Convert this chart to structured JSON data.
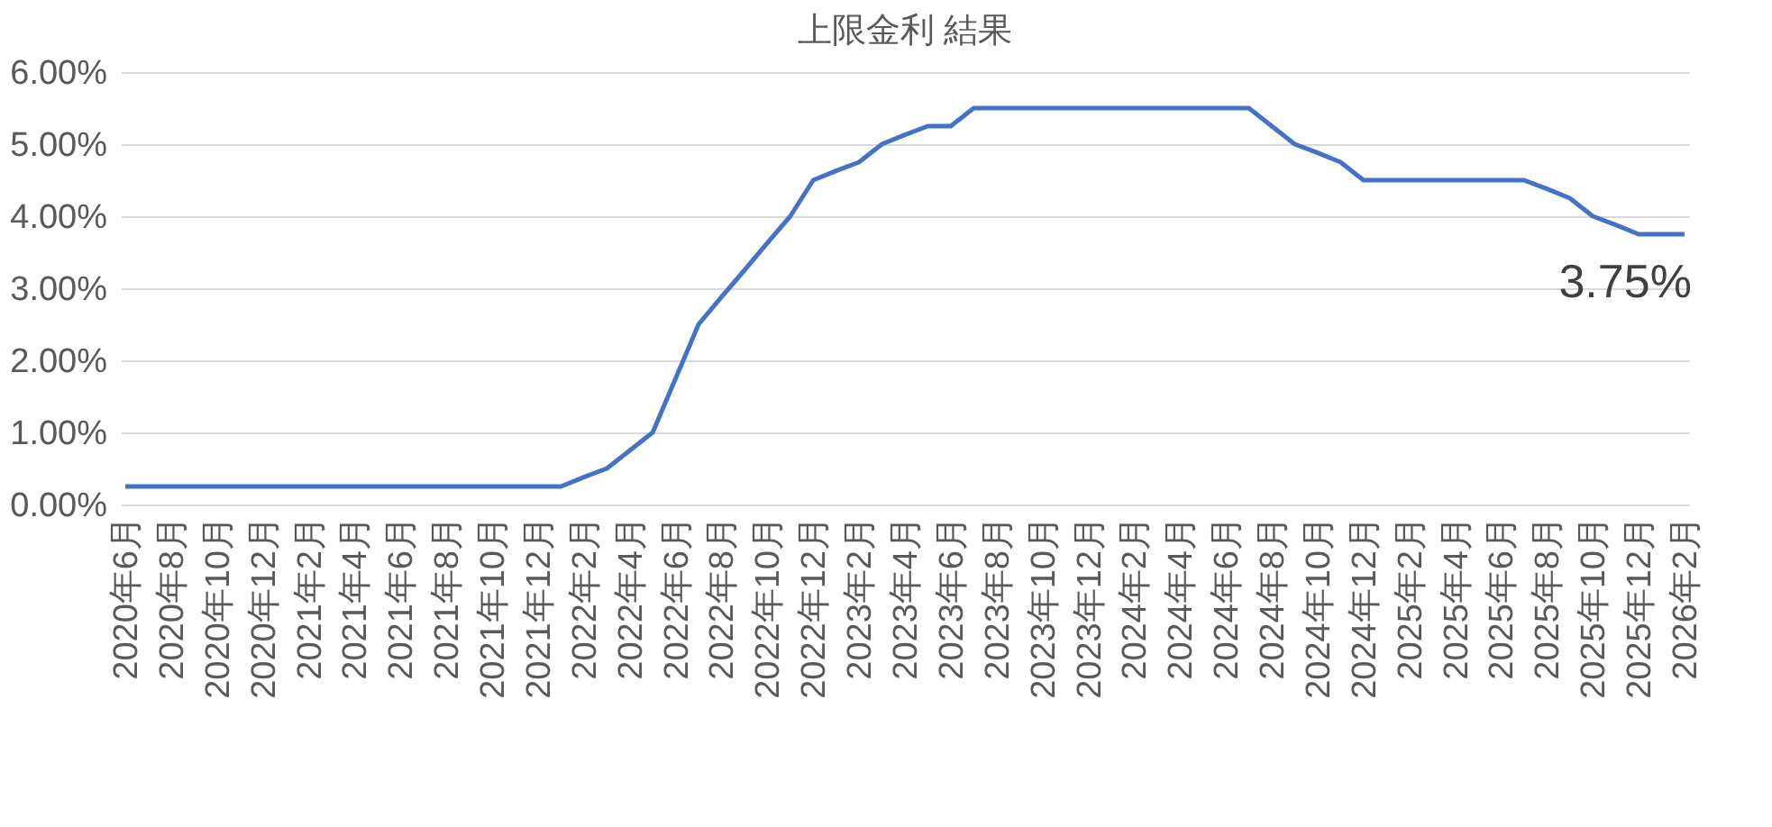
{
  "chart_data": {
    "type": "line",
    "title": "上限金利 結果",
    "categories": [
      "2020年6月",
      null,
      "2020年8月",
      null,
      "2020年10月",
      null,
      "2020年12月",
      null,
      "2021年2月",
      null,
      "2021年4月",
      null,
      "2021年6月",
      null,
      "2021年8月",
      null,
      "2021年10月",
      null,
      "2021年12月",
      null,
      "2022年2月",
      null,
      "2022年4月",
      null,
      "2022年6月",
      null,
      "2022年8月",
      null,
      "2022年10月",
      null,
      "2022年12月",
      null,
      "2023年2月",
      null,
      "2023年4月",
      null,
      "2023年6月",
      null,
      "2023年8月",
      null,
      "2023年10月",
      null,
      "2023年12月",
      null,
      "2024年2月",
      null,
      "2024年4月",
      null,
      "2024年6月",
      null,
      "2024年8月",
      null,
      "2024年10月",
      null,
      "2024年12月",
      null,
      "2025年2月",
      null,
      "2025年4月",
      null,
      "2025年6月",
      null,
      "2025年8月",
      null,
      "2025年10月",
      null,
      "2025年12月",
      null,
      "2026年2月"
    ],
    "series": [
      {
        "color": "#4472c4",
        "values": [
          0.25,
          0.25,
          0.25,
          0.25,
          0.25,
          0.25,
          0.25,
          0.25,
          0.25,
          0.25,
          0.25,
          0.25,
          0.25,
          0.25,
          0.25,
          0.25,
          0.25,
          0.25,
          0.25,
          0.25,
          0.38,
          0.5,
          0.75,
          1.0,
          1.75,
          2.5,
          2.88,
          3.25,
          3.63,
          4.0,
          4.5,
          4.63,
          4.75,
          5.0,
          5.13,
          5.25,
          5.25,
          5.5,
          5.5,
          5.5,
          5.5,
          5.5,
          5.5,
          5.5,
          5.5,
          5.5,
          5.5,
          5.5,
          5.5,
          5.5,
          5.25,
          5.0,
          4.88,
          4.75,
          4.5,
          4.5,
          4.5,
          4.5,
          4.5,
          4.5,
          4.5,
          4.5,
          4.38,
          4.25,
          4.0,
          3.88,
          3.75,
          3.75,
          3.75
        ],
        "value_labels": [
          null,
          null,
          null,
          null,
          null,
          null,
          null,
          null,
          null,
          null,
          null,
          null,
          null,
          null,
          null,
          null,
          null,
          null,
          null,
          null,
          null,
          null,
          null,
          null,
          null,
          null,
          null,
          null,
          null,
          null,
          null,
          null,
          null,
          null,
          null,
          null,
          null,
          null,
          null,
          null,
          null,
          null,
          null,
          null,
          null,
          null,
          null,
          null,
          null,
          null,
          null,
          null,
          null,
          null,
          null,
          null,
          null,
          null,
          null,
          null,
          null,
          null,
          null,
          null,
          null,
          null,
          null,
          null,
          "3.75%"
        ]
      }
    ],
    "ylim": [
      0,
      6
    ],
    "yticks": [
      {
        "value": 0,
        "label": "0.00%"
      },
      {
        "value": 1,
        "label": "1.00%"
      },
      {
        "value": 2,
        "label": "2.00%"
      },
      {
        "value": 3,
        "label": "3.00%"
      },
      {
        "value": 4,
        "label": "4.00%"
      },
      {
        "value": 5,
        "label": "5.00%"
      },
      {
        "value": 6,
        "label": "6.00%"
      }
    ],
    "grid": "y",
    "marker": "none",
    "line_style": "solid"
  }
}
